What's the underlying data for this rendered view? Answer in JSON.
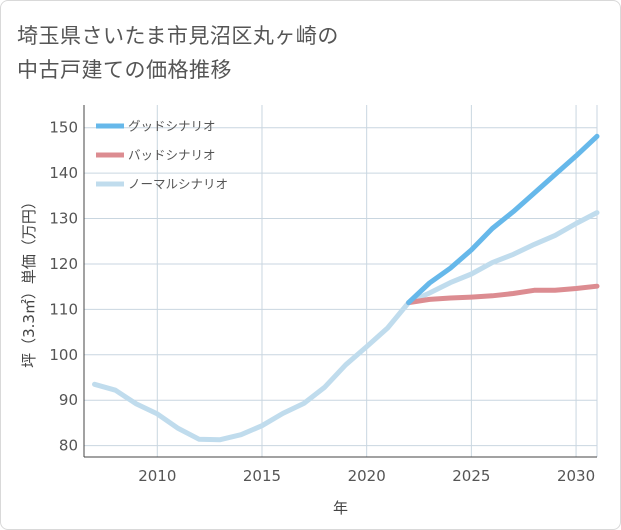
{
  "title_line1": "埼玉県さいたま市見沼区丸ヶ崎の",
  "title_line2": "中古戸建ての価格推移",
  "colors": {
    "good": "#66b8ea",
    "bad": "#dc8c91",
    "normal": "#c0dced",
    "grid": "#c9d6e0",
    "axis": "#444444"
  },
  "chart_data": {
    "type": "line",
    "title": "埼玉県さいたま市見沼区丸ヶ崎の中古戸建ての価格推移",
    "xlabel": "年",
    "ylabel": "坪（3.3㎡）単価（万円）",
    "xlim": [
      2006.5,
      2031
    ],
    "ylim": [
      77.5,
      155
    ],
    "xticks": [
      2010,
      2015,
      2020,
      2025,
      2030
    ],
    "yticks": [
      80,
      90,
      100,
      110,
      120,
      130,
      140,
      150
    ],
    "legend_position": "top-left",
    "series": [
      {
        "name": "グッドシナリオ",
        "key": "good",
        "x": [
          2022,
          2023,
          2024,
          2025,
          2026,
          2027,
          2028,
          2029,
          2030,
          2031
        ],
        "y": [
          111.5,
          115.8,
          119.1,
          123.1,
          127.8,
          131.5,
          135.6,
          139.7,
          143.8,
          148.1
        ]
      },
      {
        "name": "バッドシナリオ",
        "key": "bad",
        "x": [
          2022,
          2023,
          2024,
          2025,
          2026,
          2027,
          2028,
          2029,
          2030,
          2031
        ],
        "y": [
          111.5,
          112.2,
          112.5,
          112.7,
          113.0,
          113.5,
          114.2,
          114.2,
          114.6,
          115.1
        ]
      },
      {
        "name": "ノーマルシナリオ",
        "key": "normal",
        "x": [
          2007,
          2008,
          2009,
          2010,
          2011,
          2012,
          2013,
          2014,
          2015,
          2016,
          2017,
          2018,
          2019,
          2020,
          2021,
          2022,
          2023,
          2024,
          2025,
          2026,
          2027,
          2028,
          2029,
          2030,
          2031
        ],
        "y": [
          93.5,
          92.2,
          89.2,
          87.0,
          83.8,
          81.4,
          81.3,
          82.4,
          84.4,
          87.1,
          89.3,
          92.9,
          97.8,
          101.8,
          105.9,
          111.5,
          113.6,
          115.9,
          117.8,
          120.3,
          122.1,
          124.3,
          126.3,
          128.9,
          131.3
        ]
      }
    ]
  }
}
